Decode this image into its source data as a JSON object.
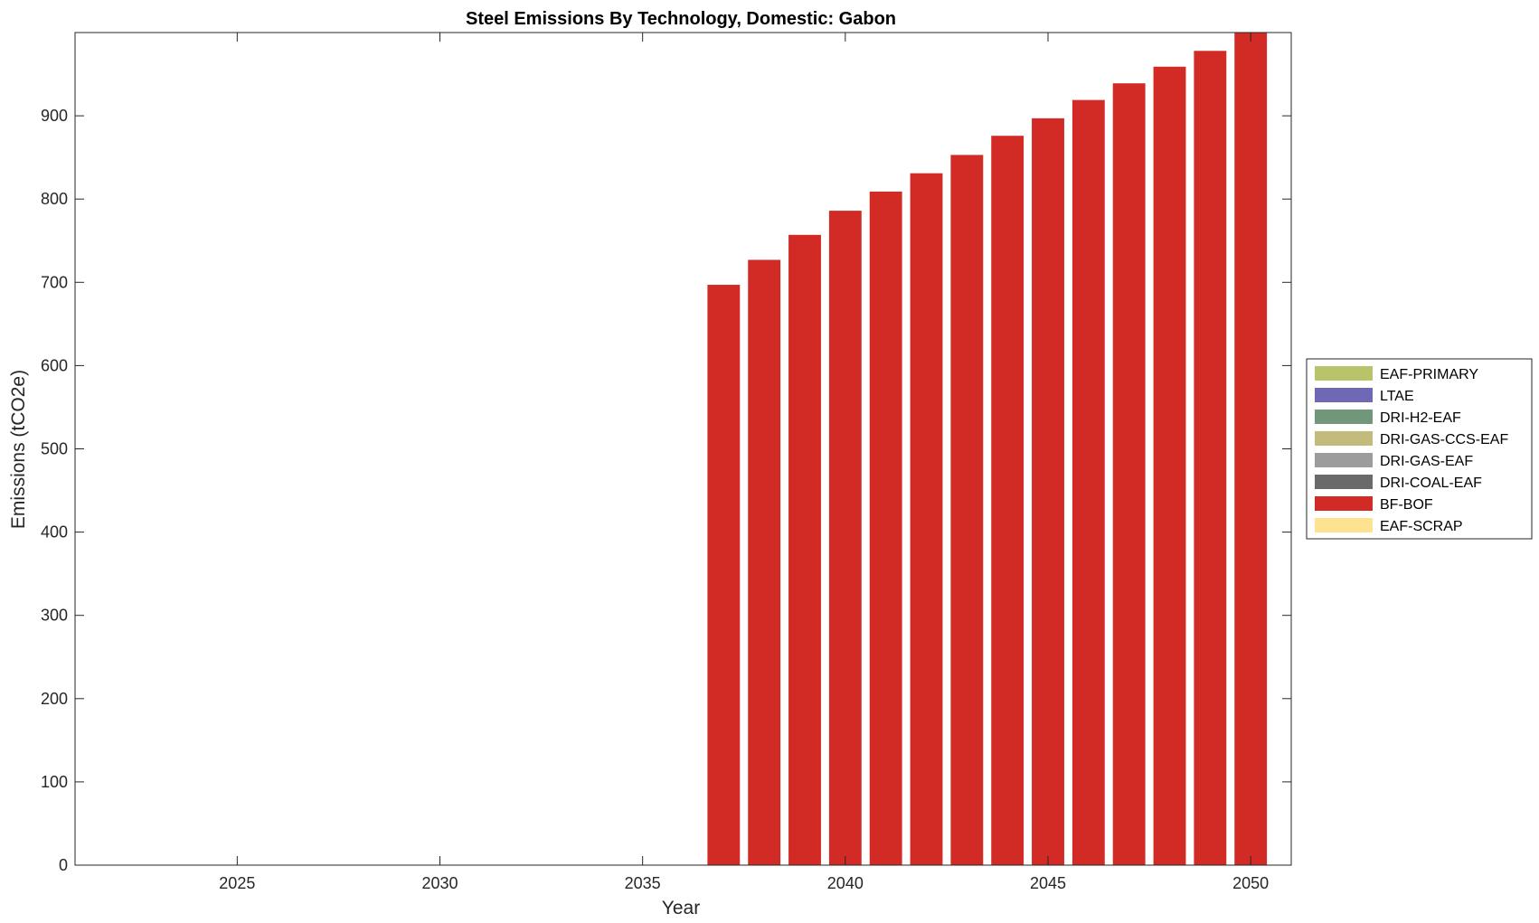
{
  "chart_data": {
    "type": "bar",
    "stacked": true,
    "title": "Steel Emissions By Technology, Domestic: Gabon",
    "xlabel": "Year",
    "ylabel": "Emissions (tCO2e)",
    "xlim": [
      2021,
      2051
    ],
    "ylim": [
      0,
      1000
    ],
    "xticks": [
      2025,
      2030,
      2035,
      2040,
      2045,
      2050
    ],
    "yticks": [
      0,
      100,
      200,
      300,
      400,
      500,
      600,
      700,
      800,
      900
    ],
    "grid": false,
    "legend_position": "outside-right",
    "categories": [
      2037,
      2038,
      2039,
      2040,
      2041,
      2042,
      2043,
      2044,
      2045,
      2046,
      2047,
      2048,
      2049,
      2050
    ],
    "series": [
      {
        "name": "EAF-PRIMARY",
        "color": "#b9c46a",
        "values": [
          0,
          0,
          0,
          0,
          0,
          0,
          0,
          0,
          0,
          0,
          0,
          0,
          0,
          0
        ]
      },
      {
        "name": "LTAE",
        "color": "#6f68b6",
        "values": [
          0,
          0,
          0,
          0,
          0,
          0,
          0,
          0,
          0,
          0,
          0,
          0,
          0,
          0
        ]
      },
      {
        "name": "DRI-H2-EAF",
        "color": "#72967a",
        "values": [
          0,
          0,
          0,
          0,
          0,
          0,
          0,
          0,
          0,
          0,
          0,
          0,
          0,
          0
        ]
      },
      {
        "name": "DRI-GAS-CCS-EAF",
        "color": "#c3bb7c",
        "values": [
          0,
          0,
          0,
          0,
          0,
          0,
          0,
          0,
          0,
          0,
          0,
          0,
          0,
          0
        ]
      },
      {
        "name": "DRI-GAS-EAF",
        "color": "#9c9c9c",
        "values": [
          0,
          0,
          0,
          0,
          0,
          0,
          0,
          0,
          0,
          0,
          0,
          0,
          0,
          0
        ]
      },
      {
        "name": "DRI-COAL-EAF",
        "color": "#6a6a6a",
        "values": [
          0,
          0,
          0,
          0,
          0,
          0,
          0,
          0,
          0,
          0,
          0,
          0,
          0,
          0
        ]
      },
      {
        "name": "BF-BOF",
        "color": "#d22b26",
        "values": [
          697,
          727,
          757,
          786,
          809,
          831,
          853,
          876,
          897,
          919,
          939,
          959,
          978,
          1000
        ]
      },
      {
        "name": "EAF-SCRAP",
        "color": "#fde28f",
        "values": [
          0,
          0,
          0,
          0,
          0,
          0,
          0,
          0,
          0,
          0,
          0,
          0,
          0,
          0
        ]
      }
    ]
  }
}
